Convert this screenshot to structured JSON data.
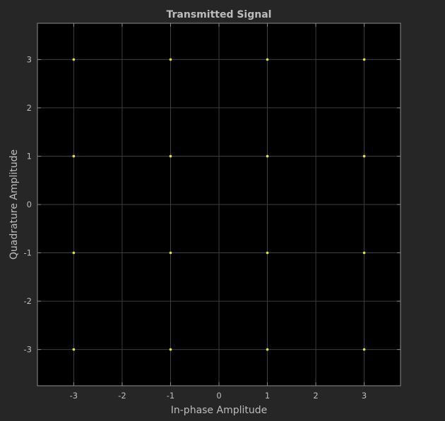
{
  "chart_data": {
    "type": "scatter",
    "title": "Transmitted Signal",
    "xlabel": "In-phase Amplitude",
    "ylabel": "Quadrature Amplitude",
    "xlim": [
      -3.75,
      3.75
    ],
    "ylim": [
      -3.75,
      3.75
    ],
    "xticks": [
      -3,
      -2,
      -1,
      0,
      1,
      2,
      3
    ],
    "yticks": [
      -3,
      -2,
      -1,
      0,
      1,
      2,
      3
    ],
    "grid": true,
    "series": [
      {
        "marker_color": "#e5e537",
        "x": [
          -3,
          -1,
          1,
          3,
          -3,
          -1,
          1,
          3,
          -3,
          -1,
          1,
          3,
          -3,
          -1,
          1,
          3
        ],
        "y": [
          3,
          3,
          3,
          3,
          1,
          1,
          1,
          1,
          -1,
          -1,
          -1,
          -1,
          -3,
          -3,
          -3,
          -3
        ]
      }
    ]
  },
  "colors": {
    "figure_background": "#262626",
    "axes_background": "#000000",
    "grid": "#3e3e3e",
    "axes_frame": "#8c8c8c",
    "text": "#bdbdbd"
  }
}
